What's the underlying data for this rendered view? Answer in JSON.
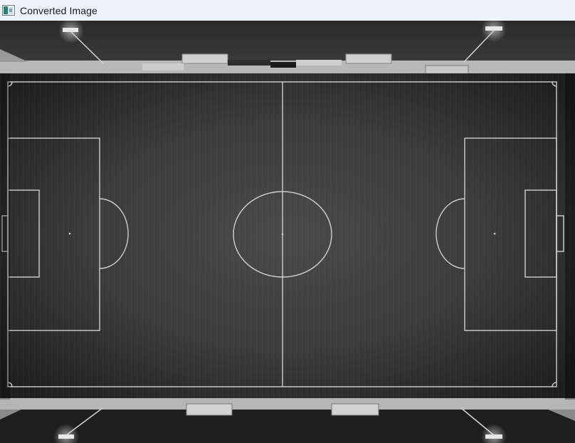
{
  "window": {
    "title": "Converted Image",
    "icon": "image-viewer-icon"
  },
  "image": {
    "description_type": "grayscale aerial photo",
    "colors": {
      "titlebar_bg": "#eef2fb",
      "pitch": "#3a3a3a",
      "lines": "#d8d8d8",
      "track": "#bdbdbd"
    }
  }
}
